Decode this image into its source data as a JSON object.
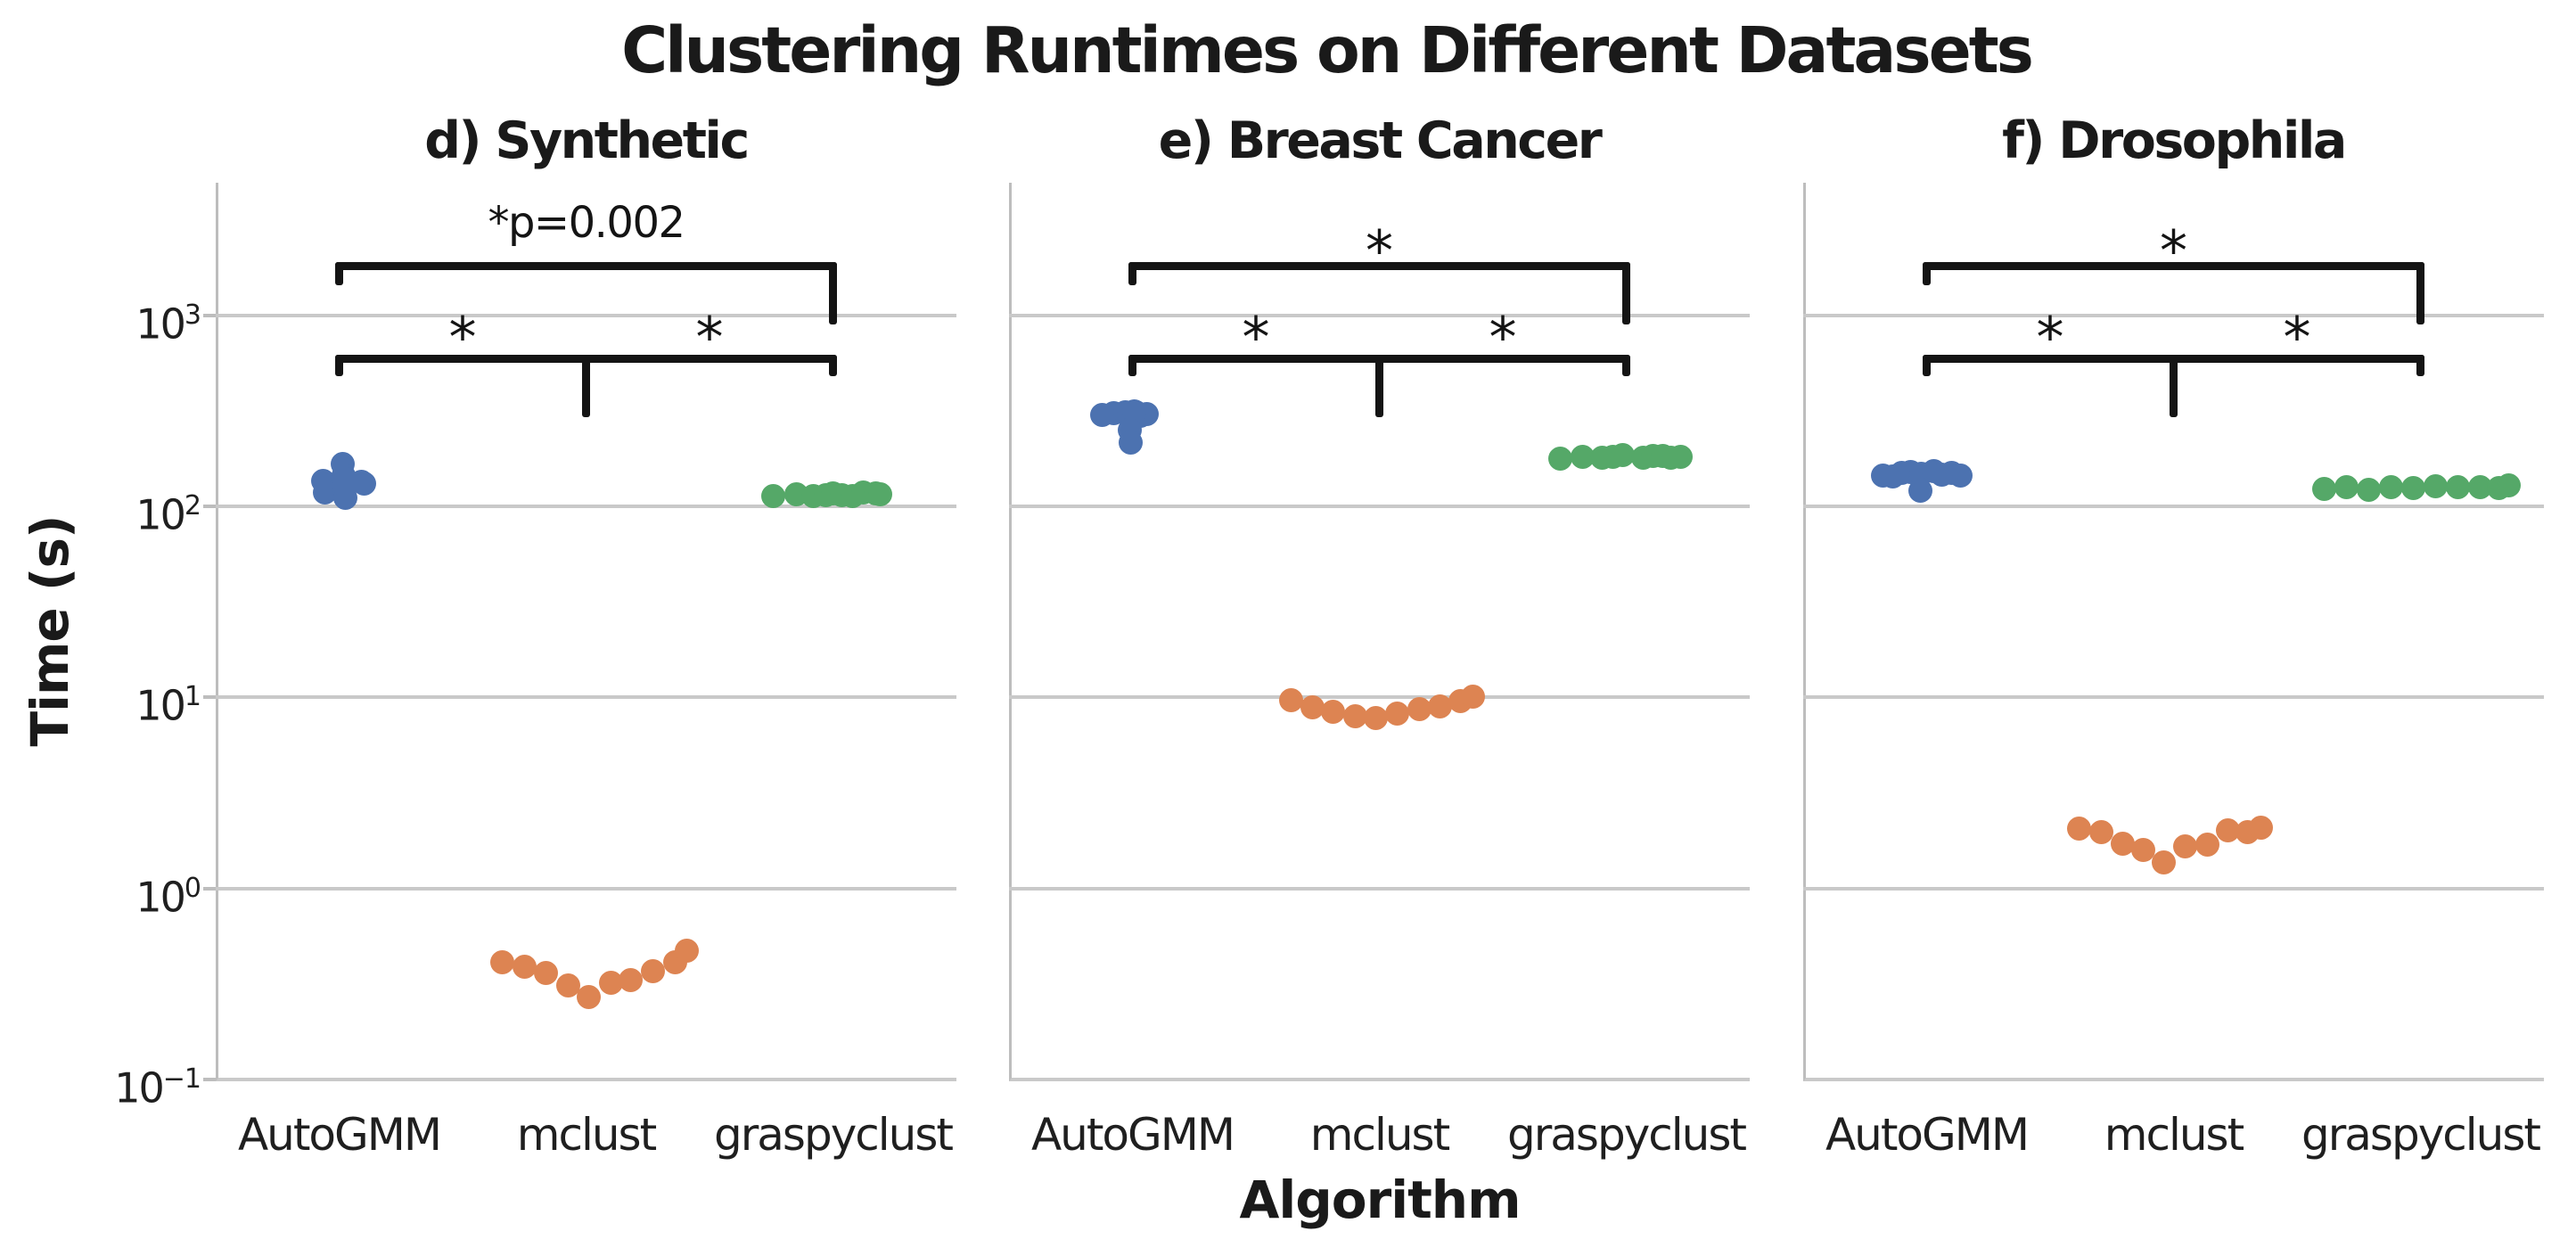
{
  "figure": {
    "title": "Clustering Runtimes on Different Datasets",
    "xlabel": "Algorithm",
    "ylabel": "Time (s)"
  },
  "chart_data": {
    "type": "scatter",
    "ylog": true,
    "ylim": [
      0.0977,
      4966
    ],
    "grid": "horizontal",
    "legend": "none",
    "categories": [
      "AutoGMM",
      "mclust",
      "graspyclust"
    ],
    "series_colors": {
      "AutoGMM": "#4C72B0",
      "mclust": "#DD8452",
      "graspyclust": "#55A868"
    },
    "yticks": [
      {
        "base": "10",
        "exp": "3",
        "value": 1000
      },
      {
        "base": "10",
        "exp": "2",
        "value": 100
      },
      {
        "base": "10",
        "exp": "1",
        "value": 10
      },
      {
        "base": "10",
        "exp": "0",
        "value": 1
      },
      {
        "base": "10",
        "exp": "−1",
        "value": 0.1
      }
    ],
    "subplots": [
      {
        "title": "d) Synthetic",
        "annotations": {
          "top_label": "*p=0.002",
          "left_pair_label": "*",
          "right_pair_label": "*"
        },
        "series": [
          {
            "name": "AutoGMM",
            "points": [
              {
                "dx": -18,
                "t": 136
              },
              {
                "dx": -16,
                "t": 119
              },
              {
                "dx": 4,
                "t": 168
              },
              {
                "dx": 5,
                "t": 146
              },
              {
                "dx": 6,
                "t": 124
              },
              {
                "dx": 7,
                "t": 111
              },
              {
                "dx": 5,
                "t": 140
              },
              {
                "dx": 6,
                "t": 129
              },
              {
                "dx": 25,
                "t": 135
              },
              {
                "dx": 28,
                "t": 132
              }
            ]
          },
          {
            "name": "mclust",
            "points": [
              {
                "dx": -94,
                "t": 0.41
              },
              {
                "dx": -69,
                "t": 0.39
              },
              {
                "dx": -45,
                "t": 0.36
              },
              {
                "dx": -20,
                "t": 0.31
              },
              {
                "dx": 3,
                "t": 0.27
              },
              {
                "dx": 28,
                "t": 0.32
              },
              {
                "dx": 50,
                "t": 0.33
              },
              {
                "dx": 75,
                "t": 0.37
              },
              {
                "dx": 100,
                "t": 0.41
              },
              {
                "dx": 113,
                "t": 0.47
              }
            ]
          },
          {
            "name": "graspyclust",
            "points": [
              {
                "dx": -67,
                "t": 113
              },
              {
                "dx": -41,
                "t": 116
              },
              {
                "dx": -22,
                "t": 114
              },
              {
                "dx": -8,
                "t": 115
              },
              {
                "dx": 0,
                "t": 117
              },
              {
                "dx": 10,
                "t": 115
              },
              {
                "dx": 22,
                "t": 113
              },
              {
                "dx": 34,
                "t": 118
              },
              {
                "dx": 48,
                "t": 117
              },
              {
                "dx": 53,
                "t": 116
              }
            ]
          }
        ]
      },
      {
        "title": "e) Breast Cancer",
        "annotations": {
          "top_label": "*",
          "left_pair_label": "*",
          "right_pair_label": "*"
        },
        "series": [
          {
            "name": "AutoGMM",
            "points": [
              {
                "dx": -34,
                "t": 301
              },
              {
                "dx": -21,
                "t": 309
              },
              {
                "dx": -8,
                "t": 313
              },
              {
                "dx": 4,
                "t": 311
              },
              {
                "dx": 16,
                "t": 306
              },
              {
                "dx": -4,
                "t": 303
              },
              {
                "dx": 9,
                "t": 299
              },
              {
                "dx": 2,
                "t": 315
              },
              {
                "dx": -3,
                "t": 252
              },
              {
                "dx": -2,
                "t": 216
              }
            ]
          },
          {
            "name": "mclust",
            "points": [
              {
                "dx": -99,
                "t": 9.7
              },
              {
                "dx": -75,
                "t": 8.9
              },
              {
                "dx": -52,
                "t": 8.4
              },
              {
                "dx": -27,
                "t": 8.0
              },
              {
                "dx": -4,
                "t": 7.8
              },
              {
                "dx": 20,
                "t": 8.2
              },
              {
                "dx": 45,
                "t": 8.7
              },
              {
                "dx": 68,
                "t": 9.0
              },
              {
                "dx": 91,
                "t": 9.6
              },
              {
                "dx": 105,
                "t": 10.1
              }
            ]
          },
          {
            "name": "graspyclust",
            "points": [
              {
                "dx": -74,
                "t": 179
              },
              {
                "dx": -49,
                "t": 183
              },
              {
                "dx": -27,
                "t": 181
              },
              {
                "dx": -15,
                "t": 182
              },
              {
                "dx": -4,
                "t": 186
              },
              {
                "dx": 19,
                "t": 180
              },
              {
                "dx": 30,
                "t": 185
              },
              {
                "dx": 41,
                "t": 184
              },
              {
                "dx": 50,
                "t": 180
              },
              {
                "dx": 61,
                "t": 182
              }
            ]
          }
        ]
      },
      {
        "title": "f) Drosophila",
        "annotations": {
          "top_label": "*",
          "left_pair_label": "*",
          "right_pair_label": "*"
        },
        "series": [
          {
            "name": "AutoGMM",
            "points": [
              {
                "dx": -49,
                "t": 146
              },
              {
                "dx": -38,
                "t": 144
              },
              {
                "dx": -28,
                "t": 150
              },
              {
                "dx": -18,
                "t": 152
              },
              {
                "dx": -6,
                "t": 148
              },
              {
                "dx": 8,
                "t": 153
              },
              {
                "dx": 17,
                "t": 147
              },
              {
                "dx": 28,
                "t": 150
              },
              {
                "dx": 38,
                "t": 145
              },
              {
                "dx": -7,
                "t": 121
              }
            ]
          },
          {
            "name": "mclust",
            "points": [
              {
                "dx": -106,
                "t": 2.06
              },
              {
                "dx": -81,
                "t": 1.98
              },
              {
                "dx": -57,
                "t": 1.72
              },
              {
                "dx": -34,
                "t": 1.59
              },
              {
                "dx": -11,
                "t": 1.37
              },
              {
                "dx": 13,
                "t": 1.66
              },
              {
                "dx": 38,
                "t": 1.7
              },
              {
                "dx": 61,
                "t": 2.02
              },
              {
                "dx": 83,
                "t": 1.98
              },
              {
                "dx": 98,
                "t": 2.08
              }
            ]
          },
          {
            "name": "graspyclust",
            "points": [
              {
                "dx": -108,
                "t": 124
              },
              {
                "dx": -83,
                "t": 126
              },
              {
                "dx": -58,
                "t": 123
              },
              {
                "dx": -33,
                "t": 127
              },
              {
                "dx": -8,
                "t": 125
              },
              {
                "dx": 17,
                "t": 128
              },
              {
                "dx": 42,
                "t": 126
              },
              {
                "dx": 67,
                "t": 127
              },
              {
                "dx": 88,
                "t": 125
              },
              {
                "dx": 99,
                "t": 129
              }
            ]
          }
        ]
      }
    ]
  }
}
